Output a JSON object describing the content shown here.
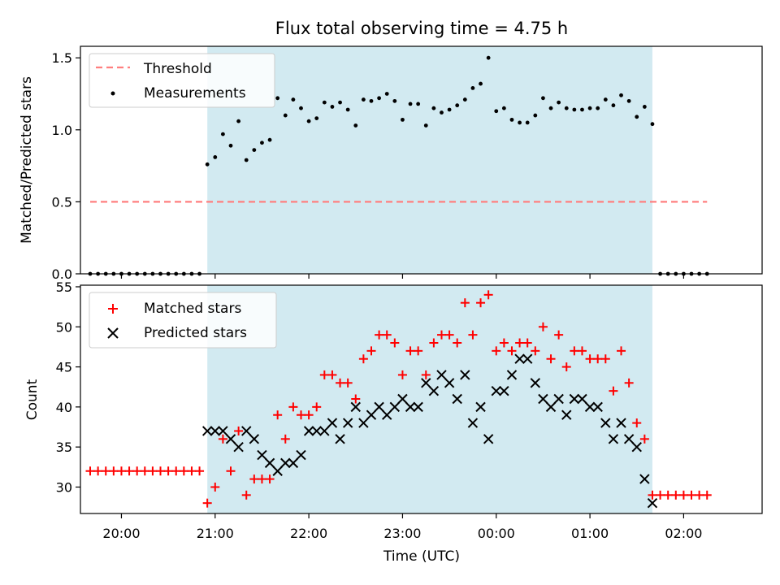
{
  "chart_data": {
    "title": "Flux total observing time = 4.75 h",
    "xlabel": "Time (UTC)",
    "x_ticks": [
      "20:00",
      "21:00",
      "22:00",
      "23:00",
      "00:00",
      "01:00",
      "02:00"
    ],
    "shaded_interval": {
      "start": "20:55",
      "end": "01:40",
      "color": "#add8e6"
    },
    "panels": [
      {
        "type": "scatter",
        "ylabel": "Matched/Predicted stars",
        "ylim": [
          0,
          1.58
        ],
        "y_ticks": [
          "0.0",
          "0.5",
          "1.0",
          "1.5"
        ],
        "threshold": {
          "name": "Threshold",
          "value": 0.5,
          "x_start": "19:40",
          "x_end": "02:15",
          "color": "#ff7f7f"
        },
        "legend": [
          "Threshold",
          "Measurements"
        ],
        "legend_position": "top-left",
        "series": [
          {
            "name": "Measurements",
            "color": "#000000",
            "marker": "dot",
            "x": [
              "19:40",
              "19:45",
              "19:50",
              "19:55",
              "20:00",
              "20:05",
              "20:10",
              "20:15",
              "20:20",
              "20:25",
              "20:30",
              "20:35",
              "20:40",
              "20:45",
              "20:50",
              "20:55",
              "21:00",
              "21:05",
              "21:10",
              "21:15",
              "21:20",
              "21:25",
              "21:30",
              "21:35",
              "21:40",
              "21:45",
              "21:50",
              "21:55",
              "22:00",
              "22:05",
              "22:10",
              "22:15",
              "22:20",
              "22:25",
              "22:30",
              "22:35",
              "22:40",
              "22:45",
              "22:50",
              "22:55",
              "23:00",
              "23:05",
              "23:10",
              "23:15",
              "23:20",
              "23:25",
              "23:30",
              "23:35",
              "23:40",
              "23:45",
              "23:50",
              "23:55",
              "00:00",
              "00:05",
              "00:10",
              "00:15",
              "00:20",
              "00:25",
              "00:30",
              "00:35",
              "00:40",
              "00:45",
              "00:50",
              "00:55",
              "01:00",
              "01:05",
              "01:10",
              "01:15",
              "01:20",
              "01:25",
              "01:30",
              "01:35",
              "01:40",
              "01:45",
              "01:50",
              "01:55",
              "02:00",
              "02:05",
              "02:10",
              "02:15"
            ],
            "y": [
              0,
              0,
              0,
              0,
              0,
              0,
              0,
              0,
              0,
              0,
              0,
              0,
              0,
              0,
              0,
              0.76,
              0.81,
              0.97,
              0.89,
              1.06,
              0.79,
              0.86,
              0.91,
              0.93,
              1.22,
              1.1,
              1.21,
              1.15,
              1.06,
              1.08,
              1.19,
              1.16,
              1.19,
              1.14,
              1.03,
              1.21,
              1.2,
              1.22,
              1.25,
              1.2,
              1.07,
              1.18,
              1.18,
              1.03,
              1.15,
              1.12,
              1.14,
              1.17,
              1.21,
              1.29,
              1.32,
              1.5,
              1.13,
              1.15,
              1.07,
              1.05,
              1.05,
              1.1,
              1.22,
              1.15,
              1.19,
              1.15,
              1.14,
              1.14,
              1.15,
              1.15,
              1.21,
              1.17,
              1.24,
              1.2,
              1.09,
              1.16,
              1.04,
              0,
              0,
              0,
              0,
              0,
              0,
              0
            ]
          }
        ]
      },
      {
        "type": "scatter",
        "ylabel": "Count",
        "ylim": [
          26.7,
          55.2
        ],
        "y_ticks": [
          "30",
          "35",
          "40",
          "45",
          "50",
          "55"
        ],
        "legend": [
          "Matched stars",
          "Predicted stars"
        ],
        "legend_position": "top-left",
        "series": [
          {
            "name": "Matched stars",
            "color": "#ff0000",
            "marker": "plus",
            "x": [
              "19:40",
              "19:45",
              "19:50",
              "19:55",
              "20:00",
              "20:05",
              "20:10",
              "20:15",
              "20:20",
              "20:25",
              "20:30",
              "20:35",
              "20:40",
              "20:45",
              "20:50",
              "20:55",
              "21:00",
              "21:05",
              "21:10",
              "21:15",
              "21:20",
              "21:25",
              "21:30",
              "21:35",
              "21:40",
              "21:45",
              "21:50",
              "21:55",
              "22:00",
              "22:05",
              "22:10",
              "22:15",
              "22:20",
              "22:25",
              "22:30",
              "22:35",
              "22:40",
              "22:45",
              "22:50",
              "22:55",
              "23:00",
              "23:05",
              "23:10",
              "23:15",
              "23:20",
              "23:25",
              "23:30",
              "23:35",
              "23:40",
              "23:45",
              "23:50",
              "23:55",
              "00:00",
              "00:05",
              "00:10",
              "00:15",
              "00:20",
              "00:25",
              "00:30",
              "00:35",
              "00:40",
              "00:45",
              "00:50",
              "00:55",
              "01:00",
              "01:05",
              "01:10",
              "01:15",
              "01:20",
              "01:25",
              "01:30",
              "01:35",
              "01:40",
              "01:45",
              "01:50",
              "01:55",
              "02:00",
              "02:05",
              "02:10",
              "02:15"
            ],
            "y": [
              32,
              32,
              32,
              32,
              32,
              32,
              32,
              32,
              32,
              32,
              32,
              32,
              32,
              32,
              32,
              28,
              30,
              36,
              32,
              37,
              29,
              31,
              31,
              31,
              39,
              36,
              40,
              39,
              39,
              40,
              44,
              44,
              43,
              43,
              41,
              46,
              47,
              49,
              49,
              48,
              44,
              47,
              47,
              44,
              48,
              49,
              49,
              48,
              53,
              49,
              53,
              54,
              47,
              48,
              47,
              48,
              48,
              47,
              50,
              46,
              49,
              45,
              47,
              47,
              46,
              46,
              46,
              42,
              47,
              43,
              38,
              36,
              29,
              29,
              29,
              29,
              29,
              29,
              29,
              29
            ]
          },
          {
            "name": "Predicted stars",
            "color": "#000000",
            "marker": "x",
            "x": [
              "20:55",
              "21:00",
              "21:05",
              "21:10",
              "21:15",
              "21:20",
              "21:25",
              "21:30",
              "21:35",
              "21:40",
              "21:45",
              "21:50",
              "21:55",
              "22:00",
              "22:05",
              "22:10",
              "22:15",
              "22:20",
              "22:25",
              "22:30",
              "22:35",
              "22:40",
              "22:45",
              "22:50",
              "22:55",
              "23:00",
              "23:05",
              "23:10",
              "23:15",
              "23:20",
              "23:25",
              "23:30",
              "23:35",
              "23:40",
              "23:45",
              "23:50",
              "23:55",
              "00:00",
              "00:05",
              "00:10",
              "00:15",
              "00:20",
              "00:25",
              "00:30",
              "00:35",
              "00:40",
              "00:45",
              "00:50",
              "00:55",
              "01:00",
              "01:05",
              "01:10",
              "01:15",
              "01:20",
              "01:25",
              "01:30",
              "01:35",
              "01:40"
            ],
            "y": [
              37,
              37,
              37,
              36,
              35,
              37,
              36,
              34,
              33,
              32,
              33,
              33,
              34,
              37,
              37,
              37,
              38,
              36,
              38,
              40,
              38,
              39,
              40,
              39,
              40,
              41,
              40,
              40,
              43,
              42,
              44,
              43,
              41,
              44,
              38,
              40,
              36,
              42,
              42,
              44,
              46,
              46,
              43,
              41,
              40,
              41,
              39,
              41,
              41,
              40,
              40,
              38,
              36,
              38,
              36,
              35,
              31,
              28
            ]
          }
        ]
      }
    ]
  }
}
